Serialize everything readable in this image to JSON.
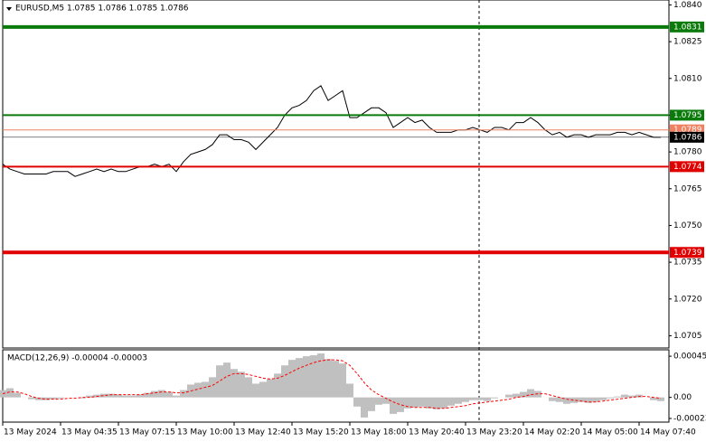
{
  "chart_data": [
    {
      "type": "line",
      "title": "EURUSD,M5  1.0785 1.0786 1.0785 1.0786",
      "color": "#000000",
      "values": [
        1.0775,
        1.0773,
        1.0772,
        1.0771,
        1.0771,
        1.0771,
        1.0771,
        1.0772,
        1.0772,
        1.0772,
        1.077,
        1.0771,
        1.0772,
        1.0773,
        1.0772,
        1.0773,
        1.0772,
        1.0772,
        1.0773,
        1.0774,
        1.0774,
        1.0775,
        1.0774,
        1.0775,
        1.0772,
        1.0776,
        1.0779,
        1.078,
        1.0781,
        1.0783,
        1.0787,
        1.0787,
        1.0785,
        1.0785,
        1.0784,
        1.0781,
        1.0784,
        1.0787,
        1.079,
        1.0795,
        1.0798,
        1.0799,
        1.0801,
        1.0805,
        1.0807,
        1.0801,
        1.0803,
        1.0805,
        1.0794,
        1.0794,
        1.0796,
        1.0798,
        1.0798,
        1.0796,
        1.079,
        1.0792,
        1.0794,
        1.0792,
        1.0793,
        1.079,
        1.0788,
        1.0788,
        1.0788,
        1.0789,
        1.0789,
        1.079,
        1.0789,
        1.0788,
        1.079,
        1.079,
        1.0789,
        1.0792,
        1.0792,
        1.0794,
        1.0792,
        1.0789,
        1.0787,
        1.0788,
        1.0786,
        1.0787,
        1.0787,
        1.0786,
        1.0787,
        1.0787,
        1.0787,
        1.0788,
        1.0788,
        1.0787,
        1.0788,
        1.0787,
        1.0786,
        1.0786
      ],
      "levels": [
        {
          "value": 1.0831,
          "color": "#0a7a0a",
          "width": 4
        },
        {
          "value": 1.0795,
          "color": "#0a7a0a",
          "width": 2
        },
        {
          "value": 1.0789,
          "color": "#f08060",
          "width": 1
        },
        {
          "value": 1.0786,
          "color": "#000000",
          "width": 0.5
        },
        {
          "value": 1.0774,
          "color": "#e00000",
          "width": 2
        },
        {
          "value": 1.0739,
          "color": "#e00000",
          "width": 4
        }
      ],
      "ylim": [
        1.07,
        1.0842
      ],
      "yticks": [
        {
          "value": 1.084,
          "label": "1.0840"
        },
        1.0825,
        {
          "value": 1.081,
          "label": "1.0810"
        },
        1.0795,
        {
          "value": 1.078,
          "label": "1.0780"
        },
        1.0765,
        {
          "value": 1.075,
          "label": "1.0750"
        },
        1.0735,
        {
          "value": 1.072,
          "label": "1.0720"
        },
        1.0705
      ]
    },
    {
      "type": "macd",
      "title": "MACD(12,26,9) -0.00004 -0.00003",
      "categories": [
        "13 May 2024",
        null,
        null,
        null,
        null,
        null,
        null,
        null,
        "13 May 04:35",
        null,
        null,
        null,
        null,
        null,
        null,
        null,
        "13 May 07:15",
        null,
        null,
        null,
        null,
        null,
        null,
        null,
        "13 May 10:00",
        null,
        null,
        null,
        null,
        null,
        null,
        null,
        "13 May 12:40",
        null,
        null,
        null,
        null,
        null,
        null,
        null,
        "13 May 15:20",
        null,
        null,
        null,
        null,
        null,
        null,
        null,
        "13 May 18:00",
        null,
        null,
        null,
        null,
        null,
        null,
        null,
        "13 May 20:40",
        null,
        null,
        null,
        null,
        null,
        null,
        null,
        "13 May 23:20",
        null,
        null,
        null,
        null,
        null,
        null,
        null,
        "14 May 02:20",
        null,
        null,
        null,
        null,
        null,
        null,
        null,
        "14 May 05:00",
        null,
        null,
        null,
        null,
        null,
        null,
        null,
        "14 May 07:40",
        null,
        null,
        null
      ],
      "series": [
        {
          "color": "#c0c0c0",
          "values": [
            8e-05,
            0.0001,
            5e-05,
            0,
            -2e-05,
            -3e-05,
            -3e-05,
            -2e-05,
            -1e-05,
            0,
            0,
            -1e-05,
            2e-05,
            3e-05,
            4e-05,
            4e-05,
            3e-05,
            2e-05,
            2e-05,
            3e-05,
            5e-05,
            7e-05,
            8e-05,
            6e-05,
            2e-05,
            8e-05,
            0.00014,
            0.00016,
            0.00017,
            0.00022,
            0.00035,
            0.00038,
            0.00031,
            0.00028,
            0.00022,
            0.00015,
            0.00017,
            0.0002,
            0.00026,
            0.00035,
            0.00041,
            0.00043,
            0.00045,
            0.00046,
            0.00048,
            0.00042,
            0.0004,
            0.00037,
            0.00015,
            -0.0001,
            -0.00022,
            -0.00015,
            -8e-05,
            -7e-05,
            -0.00018,
            -0.00016,
            -0.00012,
            -0.00011,
            -0.0001,
            -0.00012,
            -0.00013,
            -0.00012,
            -9e-05,
            -7e-05,
            -5e-05,
            -3e-05,
            -3e-05,
            -4e-05,
            -1e-05,
            0,
            3e-05,
            4e-05,
            6e-05,
            9e-05,
            7e-05,
            0,
            -4e-05,
            -5e-05,
            -7e-05,
            -6e-05,
            -5e-05,
            -6e-05,
            -5e-05,
            -3e-05,
            -1e-05,
            1e-05,
            3e-05,
            2e-05,
            3e-05,
            0,
            -3e-05,
            -4e-05
          ]
        },
        {
          "color": "#ff0000",
          "dashed": true,
          "values": [
            4e-05,
            6e-05,
            6e-05,
            4e-05,
            1e-05,
            -1e-05,
            -2e-05,
            -2e-05,
            -2e-05,
            -1e-05,
            -1e-05,
            0,
            0,
            1e-05,
            2e-05,
            3e-05,
            3e-05,
            3e-05,
            3e-05,
            3e-05,
            4e-05,
            5e-05,
            6e-05,
            6e-05,
            5e-05,
            5e-05,
            7e-05,
            9e-05,
            0.00011,
            0.00013,
            0.00018,
            0.00023,
            0.00026,
            0.00026,
            0.00025,
            0.00023,
            0.00021,
            0.0002,
            0.00021,
            0.00024,
            0.00028,
            0.00032,
            0.00035,
            0.00038,
            0.0004,
            0.00041,
            0.00041,
            0.0004,
            0.00035,
            0.00026,
            0.00016,
            8e-05,
            3e-05,
            -1e-05,
            -5e-05,
            -8e-05,
            -0.0001,
            -0.00011,
            -0.00011,
            -0.00011,
            -0.00012,
            -0.00012,
            -0.00011,
            -0.0001,
            -9e-05,
            -7e-05,
            -6e-05,
            -5e-05,
            -4e-05,
            -3e-05,
            -2e-05,
            0,
            1e-05,
            3e-05,
            4e-05,
            4e-05,
            2e-05,
            0,
            -2e-05,
            -3e-05,
            -4e-05,
            -5e-05,
            -5e-05,
            -4e-05,
            -3e-05,
            -2e-05,
            -1e-05,
            0,
            1e-05,
            1e-05,
            0,
            -1e-05
          ]
        }
      ],
      "ylim": [
        -0.00027,
        0.00052
      ],
      "yticks": [
        0.00045,
        {
          "value": 0,
          "label": "0.00"
        },
        -0.00023
      ]
    }
  ]
}
